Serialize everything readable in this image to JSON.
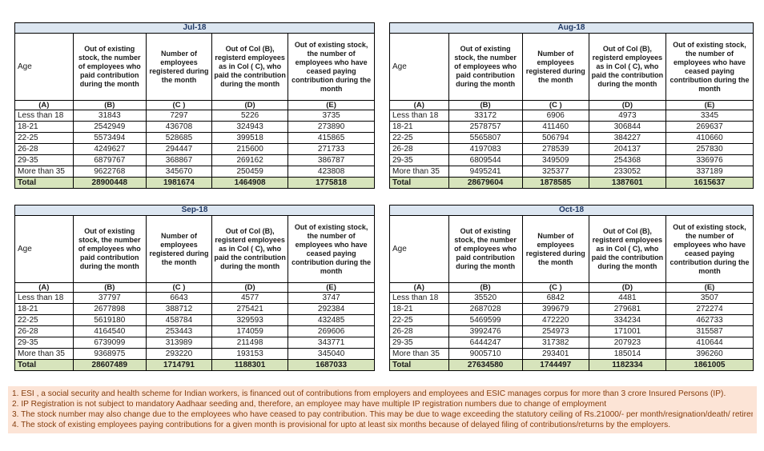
{
  "columns": {
    "age": "Age",
    "headers": [
      "Out of existing stock, the number of employees who paid contribution during the month",
      "Number of employees registered during the month",
      "Out of Col (B), registerd employees as in Col ( C), who paid the contribution during the month",
      "Out of existing stock, the number of employees who have ceased paying contribution during the month"
    ],
    "letters": [
      "(A)",
      "(B)",
      "(C )",
      "(D)",
      "(E)"
    ]
  },
  "tables": [
    {
      "month": "Jul-18",
      "rows": [
        [
          "Less than 18",
          "31843",
          "7297",
          "5226",
          "3735"
        ],
        [
          "18-21",
          "2542949",
          "436708",
          "324943",
          "273890"
        ],
        [
          "22-25",
          "5573494",
          "528685",
          "399518",
          "415865"
        ],
        [
          "26-28",
          "4249627",
          "294447",
          "215600",
          "271733"
        ],
        [
          "29-35",
          "6879767",
          "368867",
          "269162",
          "386787"
        ],
        [
          "More than 35",
          "9622768",
          "345670",
          "250459",
          "423808"
        ]
      ],
      "total": [
        "Total",
        "28900448",
        "1981674",
        "1464908",
        "1775818"
      ]
    },
    {
      "month": "Aug-18",
      "rows": [
        [
          "Less than 18",
          "33172",
          "6906",
          "4973",
          "3345"
        ],
        [
          "18-21",
          "2578757",
          "411460",
          "306844",
          "269637"
        ],
        [
          "22-25",
          "5565807",
          "506794",
          "384227",
          "410660"
        ],
        [
          "26-28",
          "4197083",
          "278539",
          "204137",
          "257830"
        ],
        [
          "29-35",
          "6809544",
          "349509",
          "254368",
          "336976"
        ],
        [
          "More than 35",
          "9495241",
          "325377",
          "233052",
          "337189"
        ]
      ],
      "total": [
        "Total",
        "28679604",
        "1878585",
        "1387601",
        "1615637"
      ]
    },
    {
      "month": "Sep-18",
      "rows": [
        [
          "Less than 18",
          "37797",
          "6643",
          "4577",
          "3747"
        ],
        [
          "18-21",
          "2677898",
          "388712",
          "275421",
          "292384"
        ],
        [
          "22-25",
          "5619180",
          "458784",
          "329593",
          "432485"
        ],
        [
          "26-28",
          "4164540",
          "253443",
          "174059",
          "269606"
        ],
        [
          "29-35",
          "6739099",
          "313989",
          "211498",
          "343771"
        ],
        [
          "More than 35",
          "9368975",
          "293220",
          "193153",
          "345040"
        ]
      ],
      "total": [
        "Total",
        "28607489",
        "1714791",
        "1188301",
        "1687033"
      ]
    },
    {
      "month": "Oct-18",
      "rows": [
        [
          "Less than 18",
          "35520",
          "6842",
          "4481",
          "3507"
        ],
        [
          "18-21",
          "2687028",
          "399679",
          "279681",
          "272274"
        ],
        [
          "22-25",
          "5469599",
          "472220",
          "334234",
          "462733"
        ],
        [
          "26-28",
          "3992476",
          "254973",
          "171001",
          "315587"
        ],
        [
          "29-35",
          "6444247",
          "317382",
          "207923",
          "410644"
        ],
        [
          "More than 35",
          "9005710",
          "293401",
          "185014",
          "396260"
        ]
      ],
      "total": [
        "Total",
        "27634580",
        "1744497",
        "1182334",
        "1861005"
      ]
    }
  ],
  "footnotes": [
    "1. ESI , a social security and health scheme for Indian workers, is financed out of contributions from employers and employees and ESIC manages corpus for more than 3 crore Insured Persons (IP).",
    "2. IP Registration is not subject to mandatory Aadhaar seeding and, therefore, an employee may have multiple IP registration numbers due to change of employment",
    "3. The stock number may also change due to the employees who have ceased to pay contribution. This may  be due to wage exceeding the statutory ceiling of  Rs.21000/- per month/resignation/death/ retirement/dismissal.",
    "4. The stock of existing employees paying contributions for a given month is provisional for upto at least six months because of delayed filing of contributions/returns by the employers."
  ],
  "colors": {
    "month-header-bg": "#dce6f1",
    "month-header-text": "#1f3864",
    "total-row-bg": "#d7e4bc",
    "footnote-bg": "#fce4d6",
    "footnote-text": "#843c0c",
    "border": "#000000"
  }
}
